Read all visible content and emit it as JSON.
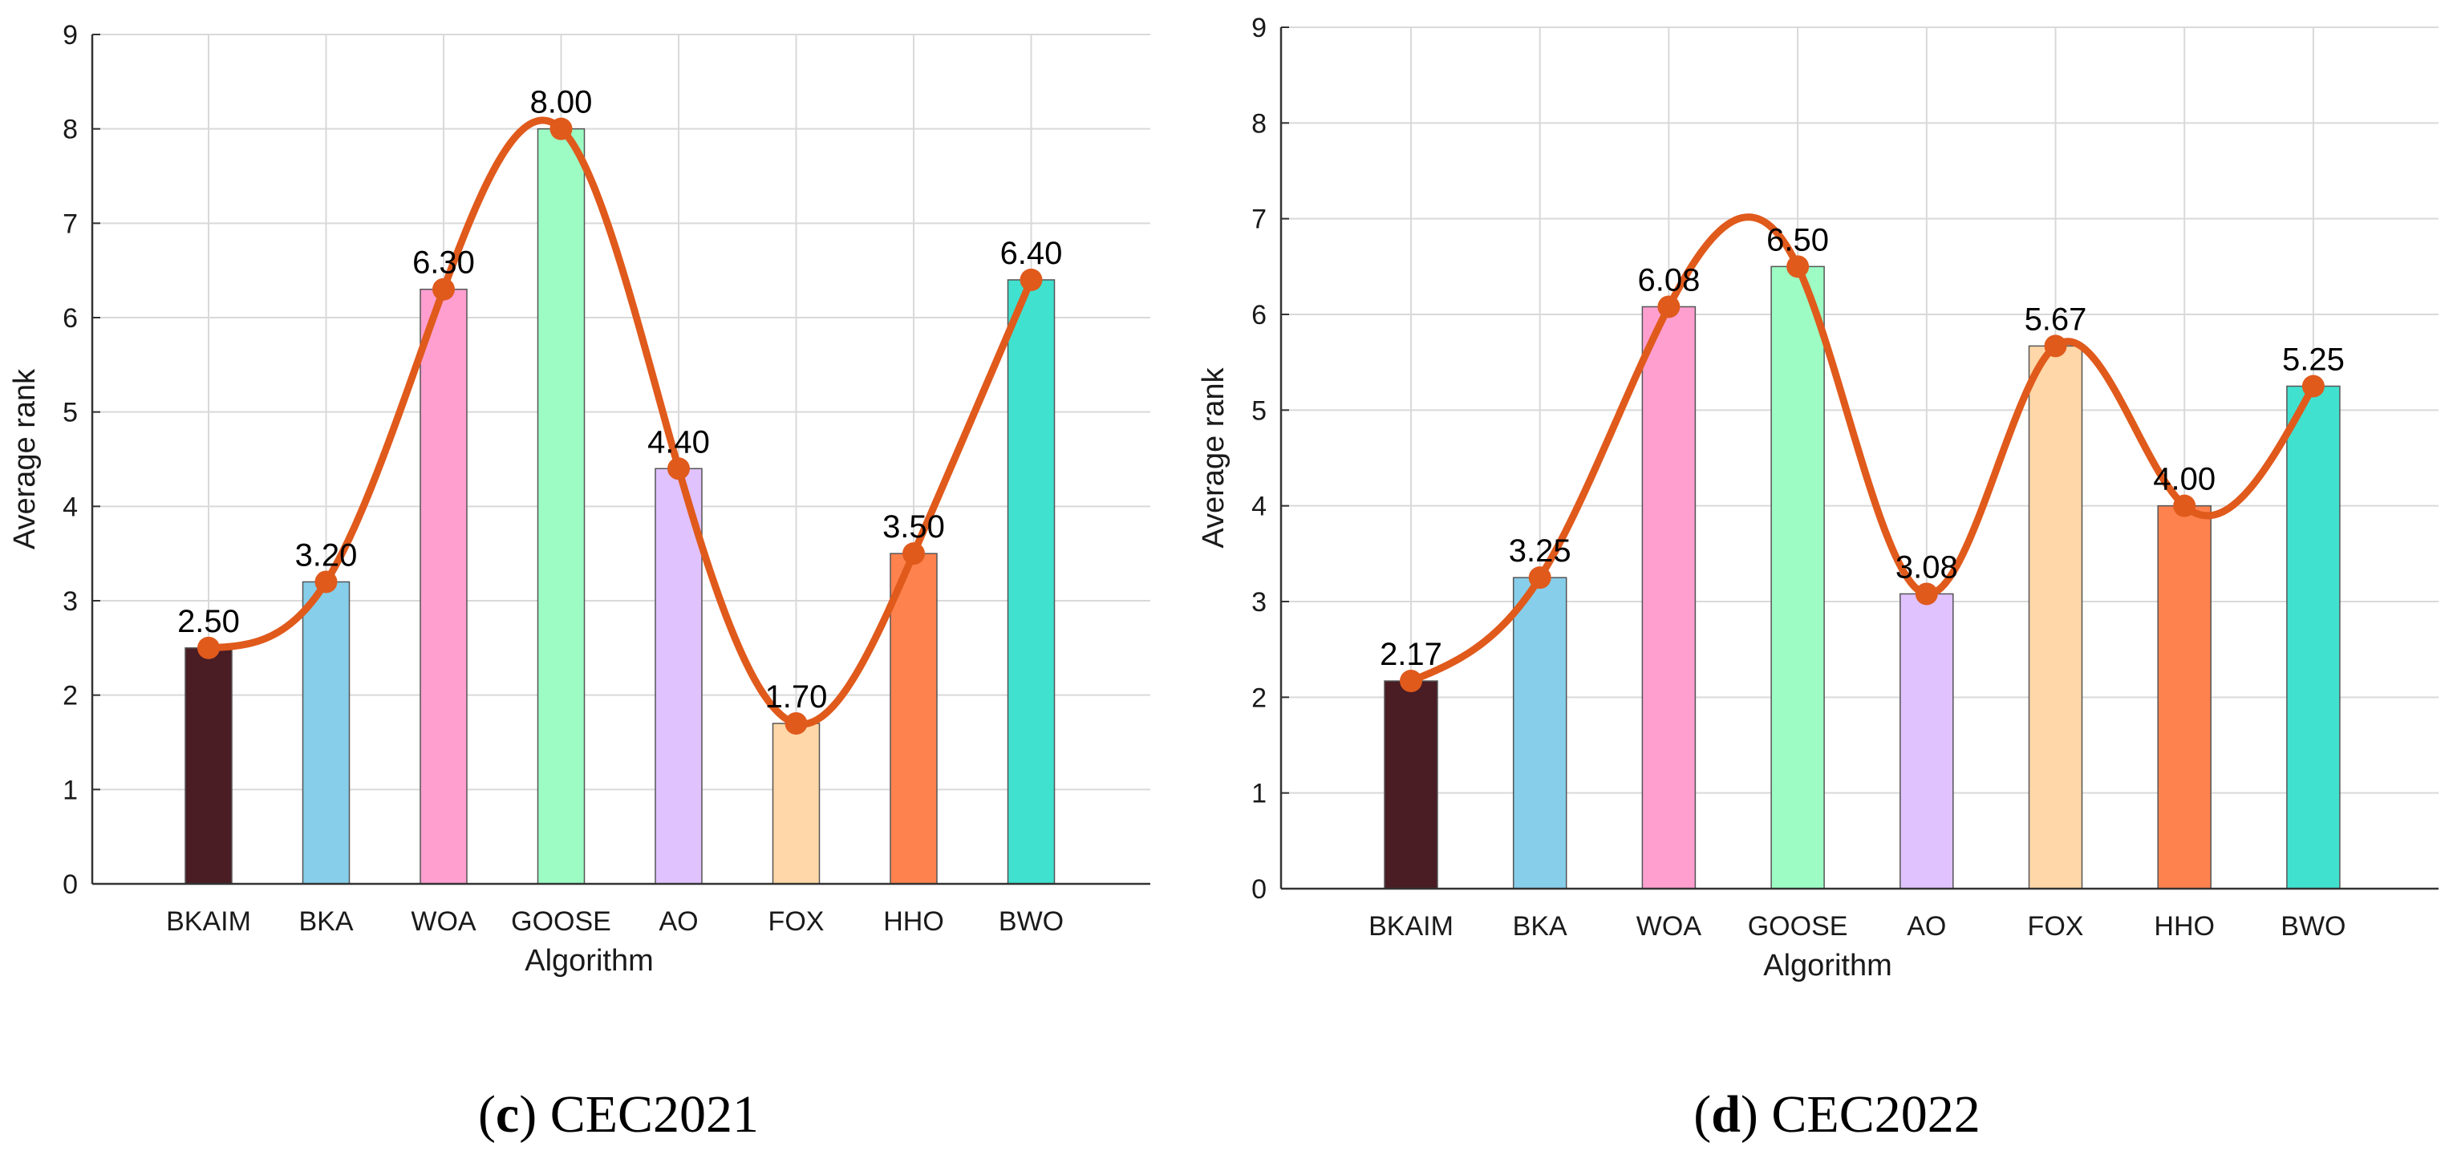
{
  "chart_data": [
    {
      "type": "bar",
      "panel": "c",
      "caption_letter": "c",
      "caption_text": "CEC2021",
      "categories": [
        "BKAIM",
        "BKA",
        "WOA",
        "GOOSE",
        "AO",
        "FOX",
        "HHO",
        "BWO"
      ],
      "values": [
        2.5,
        3.2,
        6.3,
        8.0,
        4.4,
        1.7,
        3.5,
        6.4
      ],
      "value_labels": [
        "2.50",
        "3.20",
        "6.30",
        "8.00",
        "4.40",
        "1.70",
        "3.50",
        "6.40"
      ],
      "bar_colors": [
        "#4a1c24",
        "#87ceea",
        "#ff9fd0",
        "#9dfcc4",
        "#e0c2ff",
        "#ffd7a8",
        "#fe824e",
        "#41e1cf"
      ],
      "line_color": "#e05a1c",
      "xlabel": "Algorithm",
      "ylabel": "Average rank",
      "ylim": [
        0,
        9
      ],
      "yticks": [
        "0",
        "1",
        "2",
        "3",
        "4",
        "5",
        "6",
        "7",
        "8",
        "9"
      ],
      "grid": true,
      "overlay": "smooth spline line with markers through bar tops"
    },
    {
      "type": "bar",
      "panel": "d",
      "caption_letter": "d",
      "caption_text": "CEC2022",
      "categories": [
        "BKAIM",
        "BKA",
        "WOA",
        "GOOSE",
        "AO",
        "FOX",
        "HHO",
        "BWO"
      ],
      "values": [
        2.17,
        3.25,
        6.08,
        6.5,
        3.08,
        5.67,
        4.0,
        5.25
      ],
      "value_labels": [
        "2.17",
        "3.25",
        "6.08",
        "6.50",
        "3.08",
        "5.67",
        "4.00",
        "5.25"
      ],
      "bar_colors": [
        "#4a1c24",
        "#87ceea",
        "#ff9fd0",
        "#9dfcc4",
        "#e0c2ff",
        "#ffd7a8",
        "#fe824e",
        "#41e1cf"
      ],
      "line_color": "#e05a1c",
      "xlabel": "Algorithm",
      "ylabel": "Average rank",
      "ylim": [
        0,
        9
      ],
      "yticks": [
        "0",
        "1",
        "2",
        "3",
        "4",
        "5",
        "6",
        "7",
        "8",
        "9"
      ],
      "grid": true,
      "overlay": "smooth spline line with markers through bar tops"
    }
  ]
}
